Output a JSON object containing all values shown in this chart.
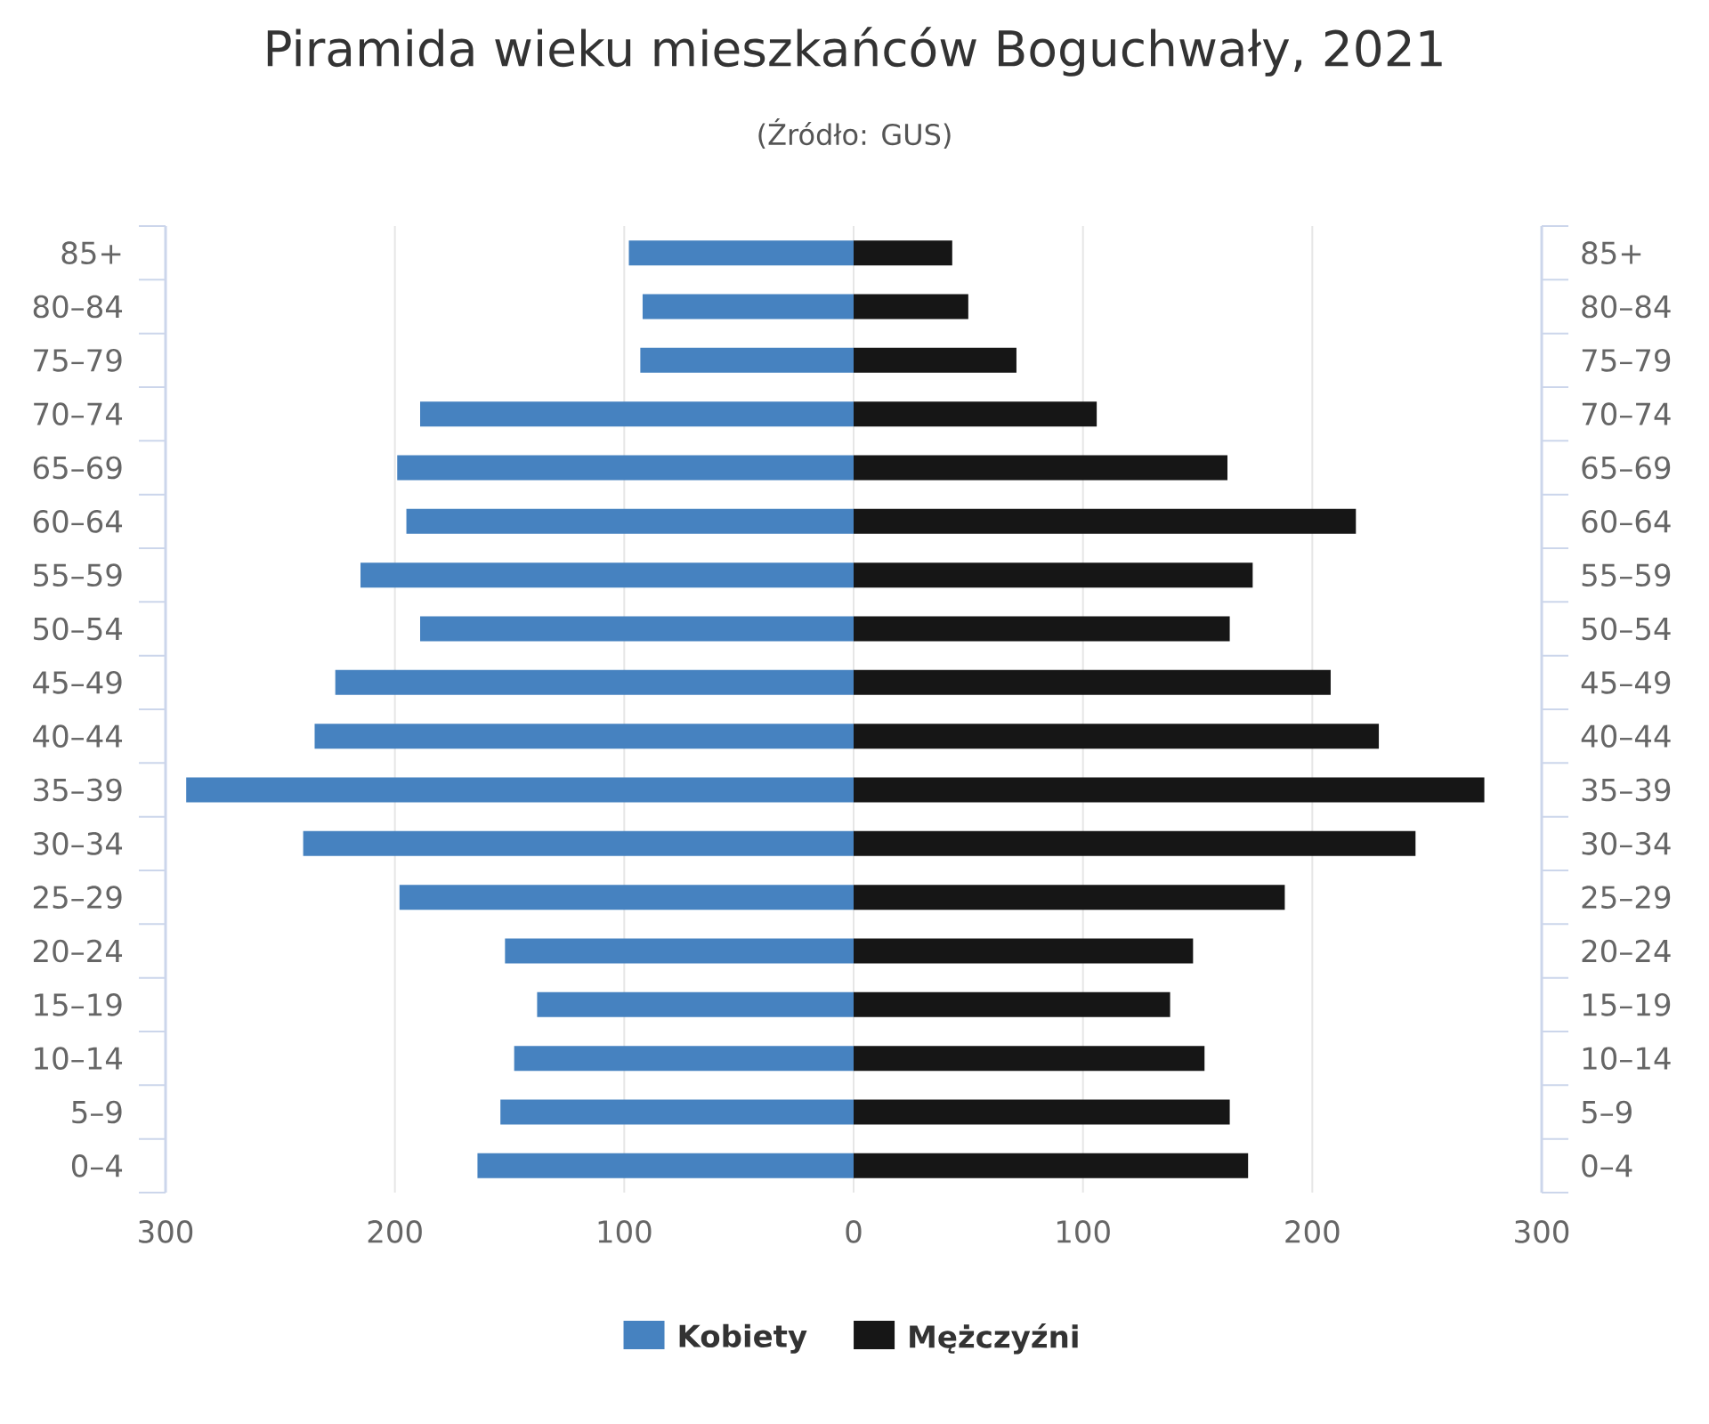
{
  "chart_data": {
    "type": "bar",
    "orientation": "horizontal",
    "stacked": true,
    "title": "Piramida wieku mieszkańców Boguchwały, 2021",
    "subtitle": "(Źródło: GUS)",
    "categories": [
      "85+",
      "80–84",
      "75–79",
      "70–74",
      "65–69",
      "60–64",
      "55–59",
      "50–54",
      "45–49",
      "40–44",
      "35–39",
      "30–34",
      "25–29",
      "20–24",
      "15–19",
      "10–14",
      "5–9",
      "0–4"
    ],
    "y2_categories": [
      "85+",
      "80–84",
      "75–79",
      "70–74",
      "65–69",
      "60–64",
      "55–59",
      "50–54",
      "45–49",
      "40–44",
      "35–39",
      "30–34",
      "25–29",
      "20–24",
      "15–19",
      "10–14",
      "5–9",
      "0–4"
    ],
    "series": [
      {
        "name": "Kobiety",
        "color": "#4682c0",
        "values": [
          -98,
          -92,
          -93,
          -189,
          -199,
          -195,
          -215,
          -189,
          -226,
          -235,
          -291,
          -240,
          -198,
          -152,
          -138,
          -148,
          -154,
          -164
        ]
      },
      {
        "name": "Mężczyźni",
        "color": "#161616",
        "values": [
          43,
          50,
          71,
          106,
          163,
          219,
          174,
          164,
          208,
          229,
          275,
          245,
          188,
          148,
          138,
          153,
          164,
          172
        ]
      }
    ],
    "xlim": [
      -300,
      300
    ],
    "xticks": [
      {
        "value": -300,
        "label": "300"
      },
      {
        "value": -200,
        "label": "200"
      },
      {
        "value": -100,
        "label": "100"
      },
      0,
      100,
      200,
      300
    ],
    "grid": "x",
    "legend": "bottom"
  }
}
